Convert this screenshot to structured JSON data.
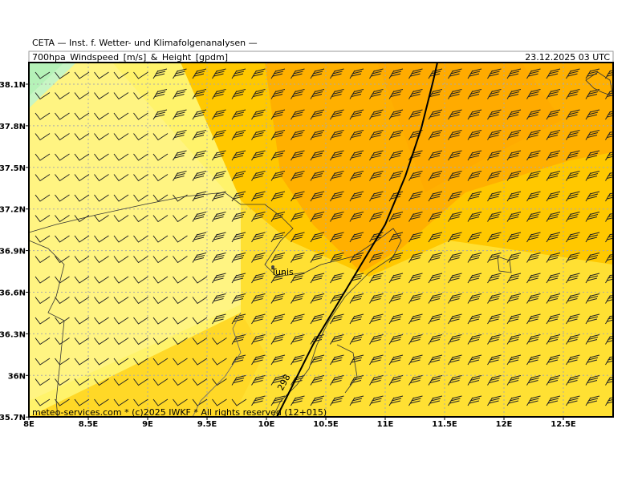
{
  "header": {
    "institute": "CETA — Inst. f. Wetter- und Klimafolgenanalysen —",
    "title": "700hpa_Windspeed_[m/s]_&_Height_[gpdm]",
    "date": "23.12.2025 03 UTC"
  },
  "axes": {
    "x_labels": [
      "8E",
      "8.5E",
      "9E",
      "9.5E",
      "10E",
      "10.5E",
      "11E",
      "11.5E",
      "12E",
      "12.5E"
    ],
    "y_labels": [
      "38.1N",
      "37.8N",
      "37.5N",
      "37.2N",
      "36.9N",
      "36.6N",
      "36.3N",
      "36N",
      "35.7N"
    ]
  },
  "map": {
    "city": "Tunis",
    "contour_label": "298"
  },
  "footer": "meteo-services.com * (c)2025 IWKF * All rights reserved (12+015)"
}
